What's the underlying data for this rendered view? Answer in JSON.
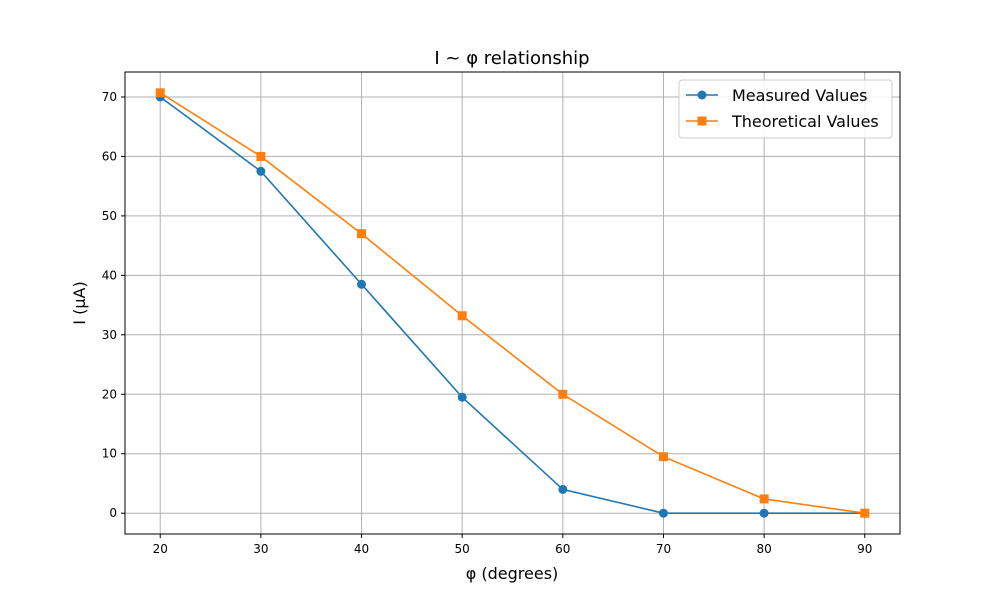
{
  "chart_data": {
    "type": "line",
    "title": "I ~ φ relationship",
    "xlabel": "φ (degrees)",
    "ylabel": "I (μA)",
    "x": [
      20,
      30,
      40,
      50,
      60,
      70,
      80,
      90
    ],
    "xlim": [
      16.5,
      93.5
    ],
    "ylim": [
      -3.5,
      74.2
    ],
    "xticks": [
      "20",
      "30",
      "40",
      "50",
      "60",
      "70",
      "80",
      "90"
    ],
    "yticks": [
      "0",
      "10",
      "20",
      "30",
      "40",
      "50",
      "60",
      "70"
    ],
    "grid": true,
    "legend_position": "top-right",
    "series": [
      {
        "name": "Measured Values",
        "values": [
          70,
          57.5,
          38.5,
          19.5,
          4,
          0,
          0,
          0
        ],
        "color": "#1f77b4",
        "marker": "circle"
      },
      {
        "name": "Theoretical Values",
        "values": [
          70.7,
          60,
          47,
          33.2,
          20,
          9.5,
          2.4,
          0
        ],
        "color": "#ff7f0e",
        "marker": "square"
      }
    ]
  }
}
